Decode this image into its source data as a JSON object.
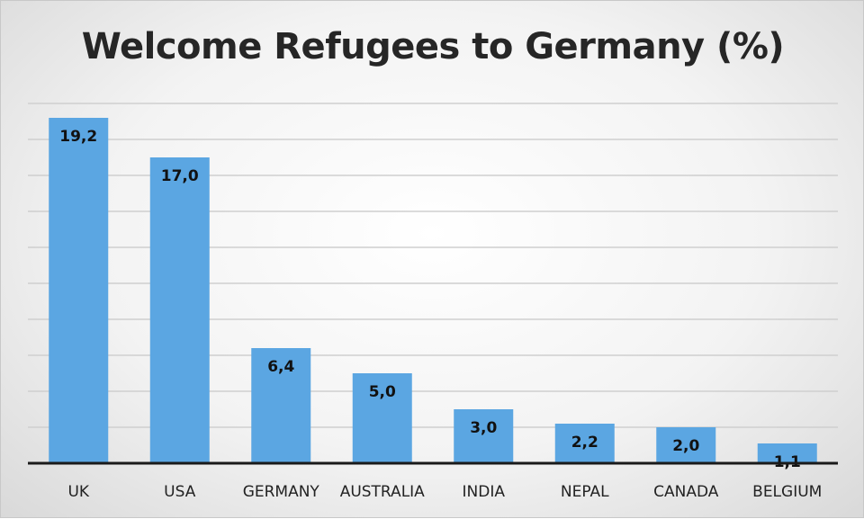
{
  "chart_data": {
    "type": "bar",
    "title": "Welcome Refugees to Germany (%)",
    "xlabel": "",
    "ylabel": "",
    "categories": [
      "UK",
      "USA",
      "GERMANY",
      "AUSTRALIA",
      "INDIA",
      "NEPAL",
      "CANADA",
      "BELGIUM"
    ],
    "values": [
      19.2,
      17.0,
      6.4,
      5.0,
      3.0,
      2.2,
      2.0,
      1.1
    ],
    "value_labels": [
      "19,2",
      "17,0",
      "6,4",
      "5,0",
      "3,0",
      "2,2",
      "2,0",
      "1,1"
    ],
    "ylim": [
      0,
      20
    ],
    "grid": true,
    "legend": "none",
    "colors": {
      "bar": "#5ba6e2",
      "axis": "#1a1a1a",
      "grid": "#cfcfcf"
    }
  }
}
